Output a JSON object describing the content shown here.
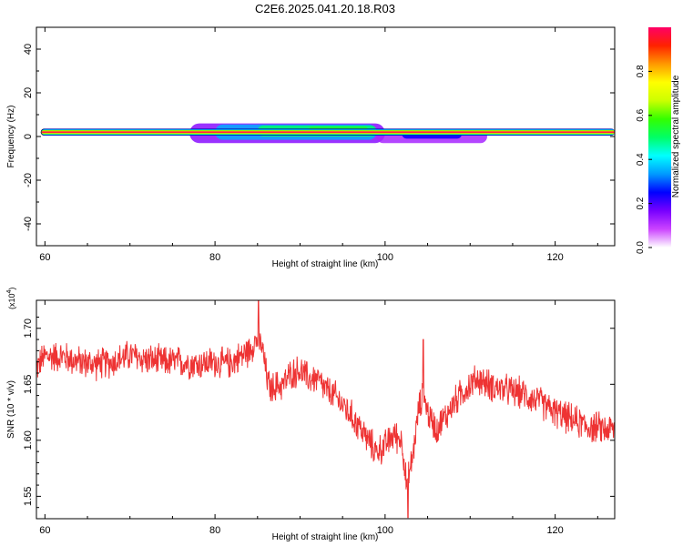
{
  "title": "C2E6.2025.041.20.18.R03",
  "chart_data": [
    {
      "type": "heatmap",
      "xlabel": "Height of straight line (km)",
      "ylabel": "Frequency (Hz)",
      "xlim": [
        59,
        127
      ],
      "ylim": [
        -50,
        50
      ],
      "xticks": [
        60,
        80,
        100,
        120
      ],
      "xtick_labels": [
        "60",
        "80",
        "100",
        "120"
      ],
      "yticks": [
        -40,
        -20,
        0,
        20,
        40
      ],
      "ytick_labels": [
        "-40",
        "-20",
        "0",
        "20",
        "40"
      ],
      "grid": false,
      "band": {
        "center_freq": 2,
        "half_width": 1.5,
        "x_start": 59.5,
        "x_end": 127
      },
      "spread_regions": [
        {
          "x": [
            77,
            100
          ],
          "y": [
            -3,
            6
          ],
          "amplitude": 0.15
        },
        {
          "x": [
            80,
            99
          ],
          "y": [
            -1.5,
            5.5
          ],
          "amplitude": 0.35
        },
        {
          "x": [
            85,
            99
          ],
          "y": [
            0,
            5
          ],
          "amplitude": 0.5
        },
        {
          "x": [
            91,
            98
          ],
          "y": [
            1.5,
            4.5
          ],
          "amplitude": 0.55
        },
        {
          "x": [
            99,
            112
          ],
          "y": [
            -3,
            3
          ],
          "amplitude": 0.12
        },
        {
          "x": [
            102,
            109
          ],
          "y": [
            -1,
            3
          ],
          "amplitude": 0.25
        }
      ],
      "colorbar": {
        "label": "Normalized spectral amplitude",
        "range": [
          0,
          1
        ],
        "ticks": [
          0.0,
          0.2,
          0.4,
          0.6,
          0.8
        ],
        "tick_labels": [
          "0.0",
          "0.2",
          "0.4",
          "0.6",
          "0.8"
        ],
        "colors": [
          "#ffffff",
          "#cc44ff",
          "#7700ff",
          "#0000ff",
          "#0099ff",
          "#00ffff",
          "#00ff66",
          "#33ff00",
          "#ccff00",
          "#ffff00",
          "#ff9900",
          "#ff2200",
          "#ff0066"
        ]
      }
    },
    {
      "type": "line",
      "xlabel": "Height of straight line (km)",
      "ylabel": "SNR (10 * v/v)",
      "y_multiplier": "(x10",
      "y_multiplier_exp": "4",
      "y_multiplier_close": ")",
      "xlim": [
        59,
        127
      ],
      "ylim": [
        1.53,
        1.725
      ],
      "xticks": [
        60,
        80,
        100,
        120
      ],
      "xtick_labels": [
        "60",
        "80",
        "100",
        "120"
      ],
      "yticks": [
        1.55,
        1.6,
        1.65,
        1.7
      ],
      "ytick_labels": [
        "1.55",
        "1.60",
        "1.65",
        "1.70"
      ],
      "grid": false,
      "line_color": "#ee3333",
      "noise_amplitude": 0.012,
      "series": [
        {
          "x": [
            59,
            60,
            62,
            64,
            66,
            68,
            70,
            72,
            74,
            76,
            78,
            80,
            81,
            82,
            83,
            84,
            84.8,
            85.5,
            86,
            86.5,
            87,
            88,
            89,
            90,
            91,
            92,
            93,
            94,
            95,
            96,
            97,
            98,
            99,
            100,
            101,
            102,
            102.5,
            103,
            103.5,
            104,
            104.5,
            105,
            106,
            107,
            108,
            109,
            110,
            111,
            112,
            114,
            116,
            118,
            120,
            122,
            124,
            126,
            127
          ],
          "y": [
            1.665,
            1.675,
            1.675,
            1.67,
            1.668,
            1.67,
            1.676,
            1.672,
            1.67,
            1.67,
            1.668,
            1.67,
            1.668,
            1.67,
            1.675,
            1.68,
            1.69,
            1.685,
            1.66,
            1.645,
            1.648,
            1.65,
            1.66,
            1.662,
            1.655,
            1.655,
            1.645,
            1.64,
            1.632,
            1.622,
            1.612,
            1.6,
            1.59,
            1.595,
            1.605,
            1.6,
            1.56,
            1.575,
            1.6,
            1.63,
            1.64,
            1.625,
            1.61,
            1.62,
            1.632,
            1.642,
            1.65,
            1.655,
            1.65,
            1.645,
            1.642,
            1.635,
            1.625,
            1.618,
            1.612,
            1.61,
            1.61
          ]
        }
      ],
      "spikes": [
        {
          "x": 85.1,
          "y": 1.726
        },
        {
          "x": 102.7,
          "y": 1.531
        },
        {
          "x": 104.5,
          "y": 1.69
        }
      ]
    }
  ]
}
